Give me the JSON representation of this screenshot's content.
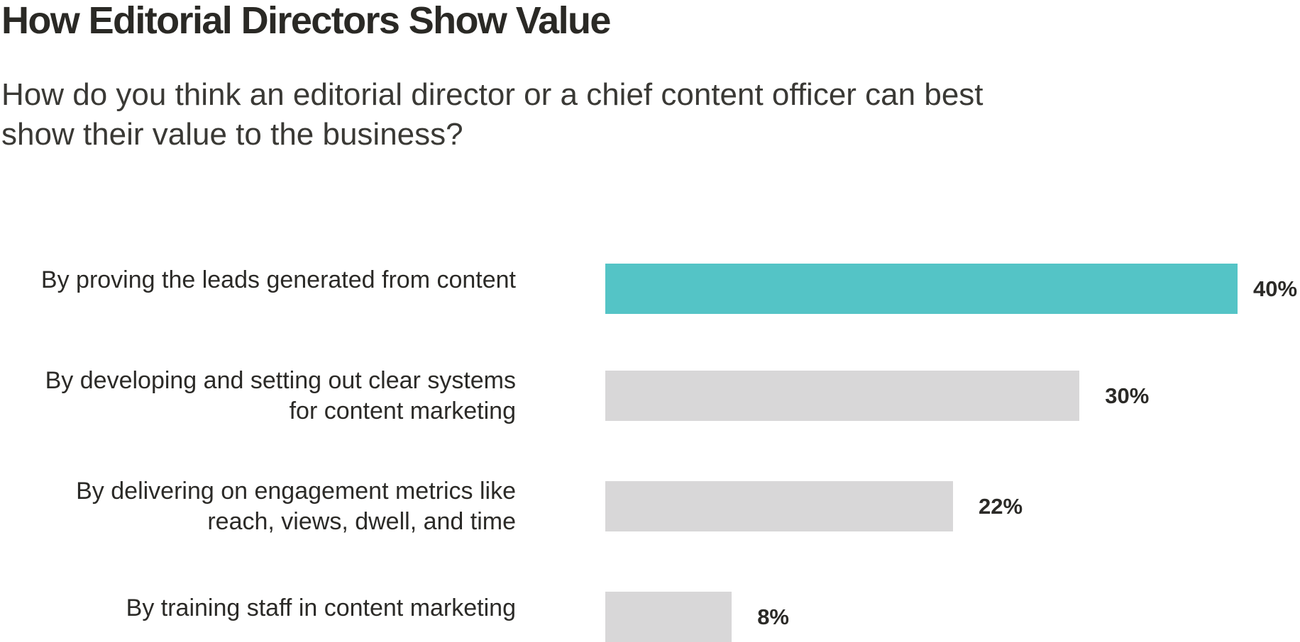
{
  "title": "How Editorial Directors Show Value",
  "subtitle": "How do you think an editorial director or a chief content officer can best show their value to the business?",
  "colors": {
    "highlight": "#54c4c6",
    "bar": "#d8d7d8",
    "text": "#2b2a27"
  },
  "chart_data": {
    "type": "bar",
    "orientation": "horizontal",
    "title": "How Editorial Directors Show Value",
    "subtitle": "How do you think an editorial director or a chief content officer can best show their value to the business?",
    "categories": [
      [
        "By proving the leads generated from content"
      ],
      [
        "By developing and setting out clear systems",
        "for content marketing"
      ],
      [
        "By delivering on engagement metrics like",
        "reach, views, dwell, and time"
      ],
      [
        "By training staff in content marketing"
      ]
    ],
    "values": [
      40,
      30,
      22,
      8
    ],
    "value_labels": [
      "40%",
      "30%",
      "22%",
      "8%"
    ],
    "highlighted": [
      true,
      false,
      false,
      false
    ],
    "xlim": [
      0,
      40
    ],
    "grid": false,
    "legend": "none"
  }
}
